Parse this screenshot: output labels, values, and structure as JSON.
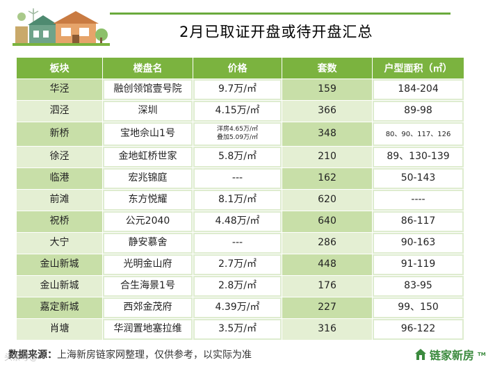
{
  "title": "2月已取证开盘或待开盘汇总",
  "headers": [
    "板块",
    "楼盘名",
    "价格",
    "套数",
    "户型面积（㎡）"
  ],
  "rows": [
    {
      "district": "华泾",
      "project": "融创领馆壹号院",
      "price": "9.7万/㎡",
      "units": "159",
      "area": "184-204"
    },
    {
      "district": "泗泾",
      "project": "深圳",
      "price": "4.15万/㎡",
      "units": "366",
      "area": "89-98"
    },
    {
      "district": "新桥",
      "project": "宝地佘山1号",
      "price_line1": "洋房4.65万/㎡",
      "price_line2": "叠加5.09万/㎡",
      "units": "348",
      "area": "80、90、117、126"
    },
    {
      "district": "徐泾",
      "project": "金地虹桥世家",
      "price": "5.8万/㎡",
      "units": "210",
      "area": "89、130-139"
    },
    {
      "district": "临港",
      "project": "宏兆锦庭",
      "price": "---",
      "units": "162",
      "area": "50-143"
    },
    {
      "district": "前滩",
      "project": "东方悦耀",
      "price": "8.1万/㎡",
      "units": "620",
      "area": "----"
    },
    {
      "district": "祝桥",
      "project": "公元2040",
      "price": "4.48万/㎡",
      "units": "640",
      "area": "86-117"
    },
    {
      "district": "大宁",
      "project": "静安慕舍",
      "price": "---",
      "units": "286",
      "area": "90-163"
    },
    {
      "district": "金山新城",
      "project": "光明金山府",
      "price": "2.7万/㎡",
      "units": "448",
      "area": "91-119"
    },
    {
      "district": "金山新城",
      "project": "合生海景1号",
      "price": "2.8万/㎡",
      "units": "176",
      "area": "83-95"
    },
    {
      "district": "嘉定新城",
      "project": "西郊金茂府",
      "price": "4.39万/㎡",
      "units": "227",
      "area": "99、150"
    },
    {
      "district": "肖塘",
      "project": "华润置地塞拉维",
      "price": "3.5万/㎡",
      "units": "316",
      "area": "96-122"
    }
  ],
  "footer": {
    "label": "数据来源：",
    "text": "上海新房链家网整理，仅供参考，以实际为准"
  },
  "watermark": "头条号@",
  "logo": {
    "text": "链家新房",
    "tm": "TM"
  },
  "colors": {
    "accent": "#7bb33f",
    "row_dark": "#c8dfa8",
    "row_light": "#e4efd3",
    "logo": "#3b8a3e"
  }
}
